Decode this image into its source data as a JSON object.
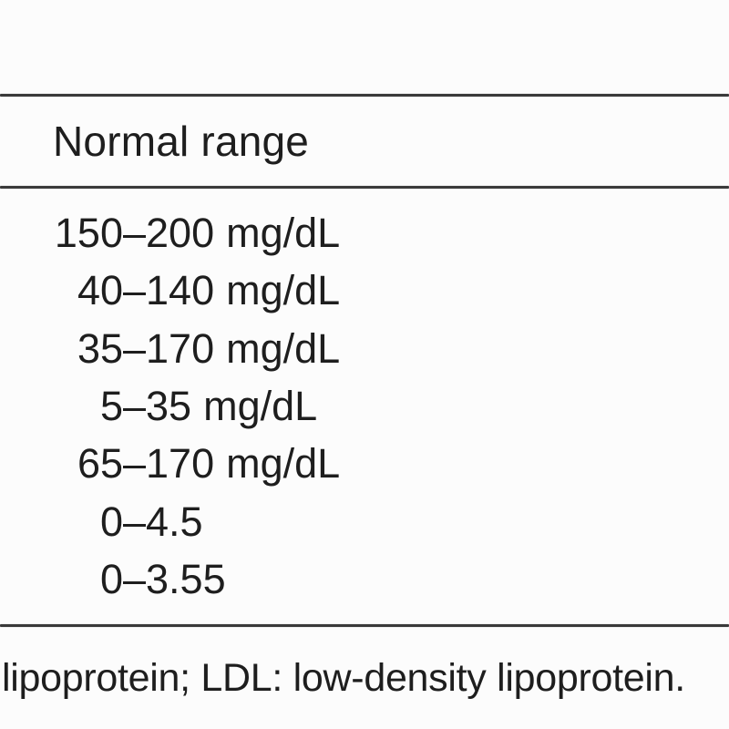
{
  "colors": {
    "background": "#fcfcfc",
    "text": "#1e1e1e",
    "rule": "#3a3a3a"
  },
  "table": {
    "header": "Normal range",
    "rows": [
      {
        "low": "150",
        "dash": "–",
        "high": "200",
        "unit": "mg/dL"
      },
      {
        "low": "40",
        "dash": "–",
        "high": "140",
        "unit": "mg/dL"
      },
      {
        "low": "35",
        "dash": "–",
        "high": "170",
        "unit": "mg/dL"
      },
      {
        "low": "5",
        "dash": "–",
        "high": "35",
        "unit": "mg/dL"
      },
      {
        "low": "65",
        "dash": "–",
        "high": "170",
        "unit": "mg/dL"
      },
      {
        "low": "0",
        "dash": "–",
        "high": "4.5",
        "unit": ""
      },
      {
        "low": "0",
        "dash": "–",
        "high": "3.55",
        "unit": ""
      }
    ],
    "footnote": "lipoprotein; LDL: low-density lipoprotein."
  }
}
